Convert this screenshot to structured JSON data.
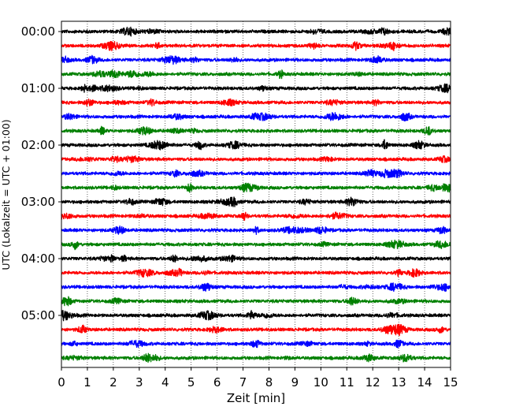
{
  "chart_data": {
    "type": "line",
    "title": "",
    "xlabel": "Zeit  [min]",
    "ylabel": "UTC (Lokalzeit = UTC + 01:00)",
    "xlim": [
      0,
      15
    ],
    "x_ticks": [
      "0",
      "1",
      "2",
      "3",
      "4",
      "5",
      "6",
      "7",
      "8",
      "9",
      "10",
      "11",
      "12",
      "13",
      "14",
      "15"
    ],
    "y_ticks": [
      "00:00",
      "01:00",
      "02:00",
      "03:00",
      "04:00",
      "05:00"
    ],
    "grid": "vertical dotted",
    "trace_interval_minutes": 15,
    "trace_count": 24,
    "first_trace_start": "00:00",
    "trace_colors": [
      "#000000",
      "#ff0000",
      "#0000ff",
      "#008000"
    ]
  }
}
